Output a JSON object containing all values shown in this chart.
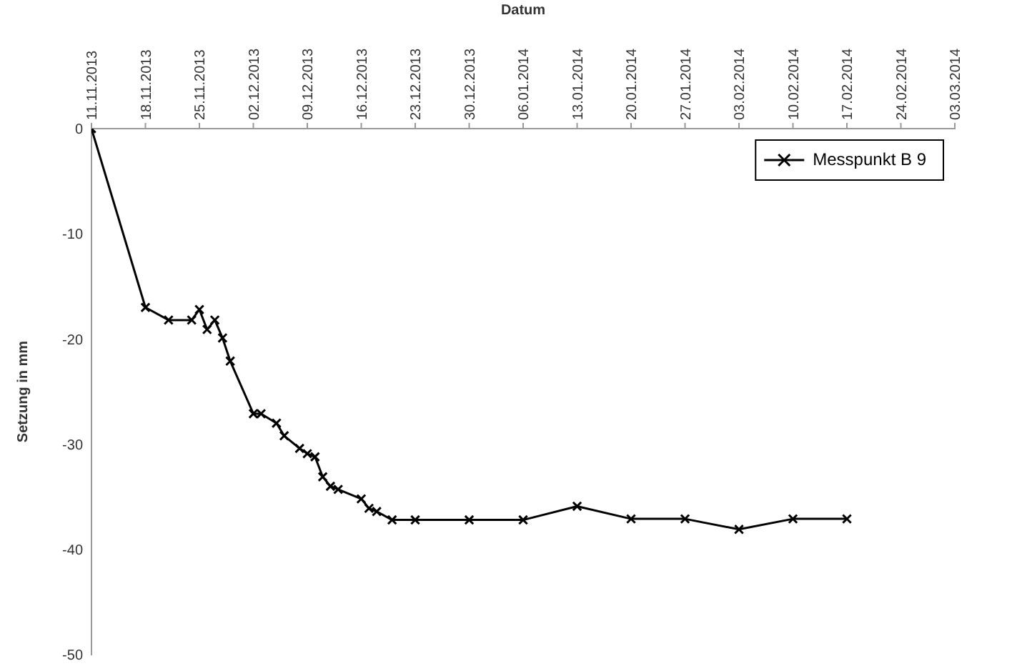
{
  "chart_data": {
    "type": "line",
    "xlabel": "Datum",
    "ylabel": "Setzung in mm",
    "x": [
      "2013-11-11",
      "2013-11-18",
      "2013-11-21",
      "2013-11-24",
      "2013-11-25",
      "2013-11-26",
      "2013-11-27",
      "2013-11-28",
      "2013-11-29",
      "2013-12-02",
      "2013-12-03",
      "2013-12-05",
      "2013-12-06",
      "2013-12-08",
      "2013-12-09",
      "2013-12-10",
      "2013-12-11",
      "2013-12-12",
      "2013-12-13",
      "2013-12-16",
      "2013-12-17",
      "2013-12-18",
      "2013-12-20",
      "2013-12-23",
      "2013-12-30",
      "2014-01-06",
      "2014-01-13",
      "2014-01-20",
      "2014-01-27",
      "2014-02-03",
      "2014-02-10",
      "2014-02-17"
    ],
    "series": [
      {
        "name": "Messpunkt B 9",
        "color": "#000000",
        "values": [
          0,
          -17,
          -18.2,
          -18.2,
          -17.2,
          -19.1,
          -18.2,
          -19.9,
          -22.1,
          -27.1,
          -27.1,
          -28,
          -29.2,
          -30.4,
          -30.9,
          -31.2,
          -33.1,
          -34,
          -34.3,
          -35.2,
          -36.1,
          -36.4,
          -37.2,
          -37.2,
          -37.2,
          -37.2,
          -35.9,
          -37.1,
          -37.1,
          -38.1,
          -37.1,
          -37.1
        ]
      }
    ],
    "xlim": [
      "2013-11-11",
      "2014-03-03"
    ],
    "xticks": [
      {
        "value": "2013-11-11",
        "label": "11.11.2013"
      },
      {
        "value": "2013-11-18",
        "label": "18.11.2013"
      },
      {
        "value": "2013-11-25",
        "label": "25.11.2013"
      },
      {
        "value": "2013-12-02",
        "label": "02.12.2013"
      },
      {
        "value": "2013-12-09",
        "label": "09.12.2013"
      },
      {
        "value": "2013-12-16",
        "label": "16.12.2013"
      },
      {
        "value": "2013-12-23",
        "label": "23.12.2013"
      },
      {
        "value": "2013-12-30",
        "label": "30.12.2013"
      },
      {
        "value": "2014-01-06",
        "label": "06.01.2014"
      },
      {
        "value": "2014-01-13",
        "label": "13.01.2014"
      },
      {
        "value": "2014-01-20",
        "label": "20.01.2014"
      },
      {
        "value": "2014-01-27",
        "label": "27.01.2014"
      },
      {
        "value": "2014-02-03",
        "label": "03.02.2014"
      },
      {
        "value": "2014-02-10",
        "label": "10.02.2014"
      },
      {
        "value": "2014-02-17",
        "label": "17.02.2014"
      },
      {
        "value": "2014-02-24",
        "label": "24.02.2014"
      },
      {
        "value": "2014-03-03",
        "label": "03.03.2014"
      }
    ],
    "ylim": [
      -50,
      0
    ],
    "yticks": [
      0,
      -10,
      -20,
      -30,
      -40,
      -50
    ],
    "grid": false,
    "legend": "top right",
    "marker": "cross",
    "line_style": "solid"
  }
}
